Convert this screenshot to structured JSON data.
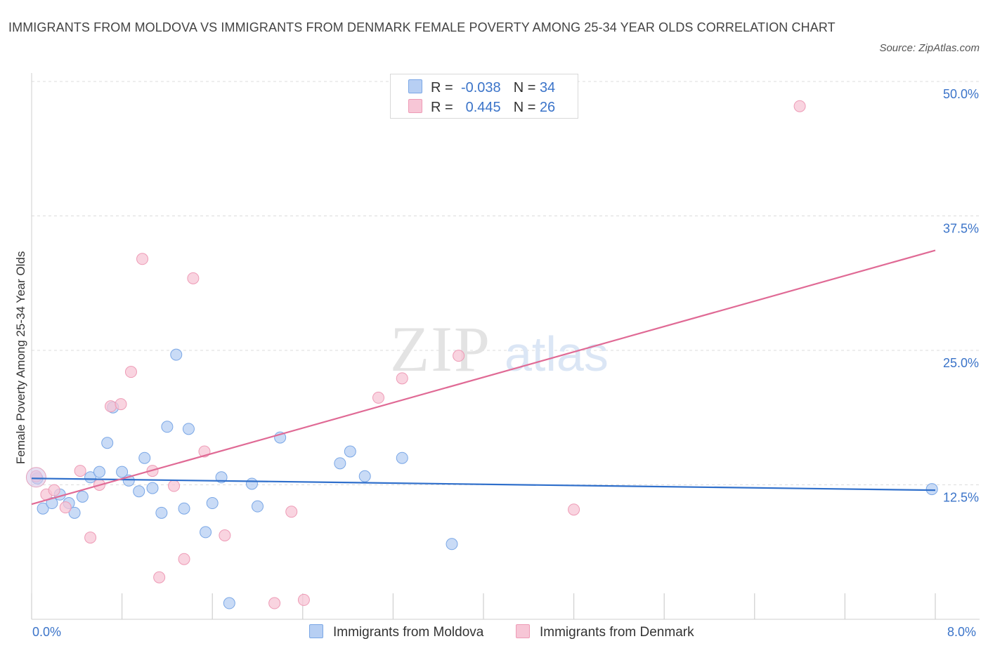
{
  "title": "IMMIGRANTS FROM MOLDOVA VS IMMIGRANTS FROM DENMARK FEMALE POVERTY AMONG 25-34 YEAR OLDS CORRELATION CHART",
  "source": "Source: ZipAtlas.com",
  "watermark": {
    "zip": "ZIP",
    "atlas": "atlas"
  },
  "legend": {
    "rows": [
      {
        "r_label": "R =",
        "r_value": "-0.038",
        "n_label": "N =",
        "n_value": "34"
      },
      {
        "r_label": "R =",
        "r_value": "0.445",
        "n_label": "N =",
        "n_value": "26"
      }
    ]
  },
  "chart_data": {
    "type": "scatter",
    "title": "IMMIGRANTS FROM MOLDOVA VS IMMIGRANTS FROM DENMARK FEMALE POVERTY AMONG 25-34 YEAR OLDS CORRELATION CHART",
    "xlabel": "",
    "ylabel": "Female Poverty Among 25-34 Year Olds",
    "xlim": [
      0,
      8
    ],
    "ylim": [
      0,
      50
    ],
    "x_tick_labels": [
      "0.0%",
      "8.0%"
    ],
    "y_ticks": [
      12.5,
      25.0,
      37.5,
      50.0
    ],
    "y_tick_labels": [
      "12.5%",
      "25.0%",
      "37.5%",
      "50.0%"
    ],
    "grid": true,
    "legend_position": "bottom",
    "series": [
      {
        "name": "Immigrants from Moldova",
        "color": "#7aa7e6",
        "fill": "#b7cff3",
        "line_color": "#2f6fcb",
        "R": -0.038,
        "N": 34,
        "trend": {
          "x": [
            0.0,
            8.0
          ],
          "y": [
            13.1,
            12.0
          ]
        },
        "points": [
          {
            "x": 0.05,
            "y": 13.1
          },
          {
            "x": 0.1,
            "y": 10.3
          },
          {
            "x": 0.18,
            "y": 10.8
          },
          {
            "x": 0.25,
            "y": 11.6
          },
          {
            "x": 0.33,
            "y": 10.8
          },
          {
            "x": 0.38,
            "y": 9.9
          },
          {
            "x": 0.45,
            "y": 11.4
          },
          {
            "x": 0.52,
            "y": 13.2
          },
          {
            "x": 0.6,
            "y": 13.7
          },
          {
            "x": 0.67,
            "y": 16.4
          },
          {
            "x": 0.72,
            "y": 19.7
          },
          {
            "x": 0.8,
            "y": 13.7
          },
          {
            "x": 0.86,
            "y": 12.9
          },
          {
            "x": 0.95,
            "y": 11.9
          },
          {
            "x": 1.0,
            "y": 15.0
          },
          {
            "x": 1.07,
            "y": 12.2
          },
          {
            "x": 1.15,
            "y": 9.9
          },
          {
            "x": 1.2,
            "y": 17.9
          },
          {
            "x": 1.28,
            "y": 24.6
          },
          {
            "x": 1.35,
            "y": 10.3
          },
          {
            "x": 1.39,
            "y": 17.7
          },
          {
            "x": 1.54,
            "y": 8.1
          },
          {
            "x": 1.6,
            "y": 10.8
          },
          {
            "x": 1.68,
            "y": 13.2
          },
          {
            "x": 1.75,
            "y": 1.5
          },
          {
            "x": 1.95,
            "y": 12.6
          },
          {
            "x": 2.0,
            "y": 10.5
          },
          {
            "x": 2.2,
            "y": 16.9
          },
          {
            "x": 2.73,
            "y": 14.5
          },
          {
            "x": 2.82,
            "y": 15.6
          },
          {
            "x": 2.95,
            "y": 13.3
          },
          {
            "x": 3.28,
            "y": 15.0
          },
          {
            "x": 3.72,
            "y": 7.0
          },
          {
            "x": 7.97,
            "y": 12.1
          }
        ]
      },
      {
        "name": "Immigrants from Denmark",
        "color": "#ee9bb6",
        "fill": "#f7c6d6",
        "line_color": "#e06a95",
        "R": 0.445,
        "N": 26,
        "trend": {
          "x": [
            0.0,
            8.0
          ],
          "y": [
            10.7,
            34.3
          ]
        },
        "points": [
          {
            "x": 0.04,
            "y": 13.3
          },
          {
            "x": 0.13,
            "y": 11.6
          },
          {
            "x": 0.2,
            "y": 12.0
          },
          {
            "x": 0.3,
            "y": 10.4
          },
          {
            "x": 0.43,
            "y": 13.8
          },
          {
            "x": 0.52,
            "y": 7.6
          },
          {
            "x": 0.6,
            "y": 12.5
          },
          {
            "x": 0.7,
            "y": 19.8
          },
          {
            "x": 0.79,
            "y": 20.0
          },
          {
            "x": 0.88,
            "y": 23.0
          },
          {
            "x": 0.98,
            "y": 33.5
          },
          {
            "x": 1.07,
            "y": 13.8
          },
          {
            "x": 1.13,
            "y": 3.9
          },
          {
            "x": 1.26,
            "y": 12.4
          },
          {
            "x": 1.35,
            "y": 5.6
          },
          {
            "x": 1.43,
            "y": 31.7
          },
          {
            "x": 1.53,
            "y": 15.6
          },
          {
            "x": 1.71,
            "y": 7.8
          },
          {
            "x": 2.15,
            "y": 1.5
          },
          {
            "x": 2.3,
            "y": 10.0
          },
          {
            "x": 2.41,
            "y": 1.8
          },
          {
            "x": 3.07,
            "y": 20.6
          },
          {
            "x": 3.28,
            "y": 22.4
          },
          {
            "x": 3.78,
            "y": 24.5
          },
          {
            "x": 4.8,
            "y": 10.2
          },
          {
            "x": 6.8,
            "y": 47.7
          }
        ]
      }
    ]
  }
}
